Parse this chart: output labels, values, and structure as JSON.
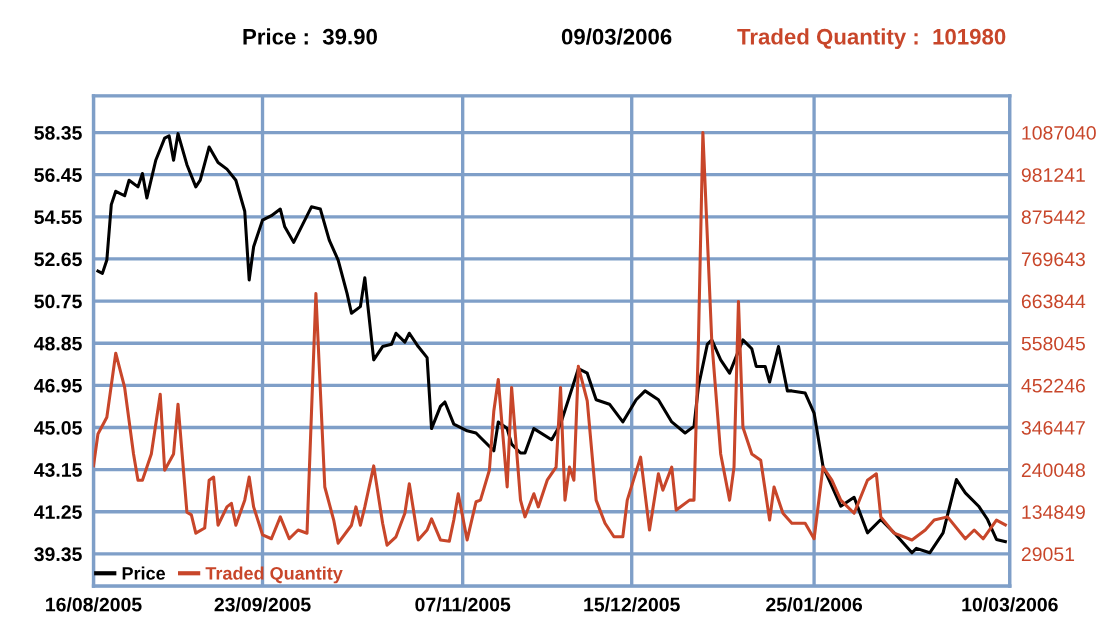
{
  "chart_data": {
    "type": "line",
    "annotations": [
      "Price :  39.90",
      "09/03/2006",
      "Traded Quantity :  101980"
    ],
    "xlim": [
      "2005-08-16",
      "2006-03-10"
    ],
    "xticks": [
      {
        "value": "2005-08-16",
        "label": "16/08/2005"
      },
      {
        "value": "2005-09-23",
        "label": "23/09/2005"
      },
      {
        "value": "2005-11-07",
        "label": "07/11/2005"
      },
      {
        "value": "2005-12-15",
        "label": "15/12/2005"
      },
      {
        "value": "2006-01-25",
        "label": "25/01/2006"
      },
      {
        "value": "2006-03-10",
        "label": "10/03/2006"
      }
    ],
    "ylim": [
      37.9,
      60.0
    ],
    "yticks": [
      39.35,
      41.25,
      43.15,
      45.05,
      46.95,
      48.85,
      50.75,
      52.65,
      54.55,
      56.45,
      58.35
    ],
    "y2lim": [
      -51700,
      1178900
    ],
    "y2ticks": [
      29051,
      134849,
      240048,
      346447,
      452246,
      558045,
      663844,
      769643,
      875442,
      981241,
      1087040
    ],
    "grid": true,
    "legend": "bottom left",
    "marker": "none",
    "line_style": "solid",
    "series": [
      {
        "name": "Price",
        "color": "#000000",
        "x": [
          "2005-08-17",
          "2005-08-18",
          "2005-08-19",
          "2005-08-20",
          "2005-08-21",
          "2005-08-23",
          "2005-08-24",
          "2005-08-26",
          "2005-08-27",
          "2005-08-28",
          "2005-08-30",
          "2005-09-01",
          "2005-09-02",
          "2005-09-03",
          "2005-09-04",
          "2005-09-06",
          "2005-09-08",
          "2005-09-09",
          "2005-09-11",
          "2005-09-13",
          "2005-09-15",
          "2005-09-17",
          "2005-09-19",
          "2005-09-20",
          "2005-09-21",
          "2005-09-23",
          "2005-09-25",
          "2005-09-27",
          "2005-09-28",
          "2005-09-30",
          "2005-10-02",
          "2005-10-04",
          "2005-10-06",
          "2005-10-08",
          "2005-10-10",
          "2005-10-12",
          "2005-10-13",
          "2005-10-15",
          "2005-10-16",
          "2005-10-18",
          "2005-10-20",
          "2005-10-22",
          "2005-10-23",
          "2005-10-25",
          "2005-10-26",
          "2005-10-28",
          "2005-10-30",
          "2005-10-31",
          "2005-11-02",
          "2005-11-03",
          "2005-11-05",
          "2005-11-07",
          "2005-11-08",
          "2005-11-10",
          "2005-11-11",
          "2005-11-14",
          "2005-11-15",
          "2005-11-17",
          "2005-11-18",
          "2005-11-20",
          "2005-11-21",
          "2005-11-23",
          "2005-11-27",
          "2005-11-29",
          "2005-12-03",
          "2005-12-05",
          "2005-12-07",
          "2005-12-10",
          "2005-12-13",
          "2005-12-16",
          "2005-12-18",
          "2005-12-21",
          "2005-12-24",
          "2005-12-27",
          "2005-12-29",
          "2005-12-30",
          "2006-01-01",
          "2006-01-02",
          "2006-01-04",
          "2006-01-06",
          "2006-01-09",
          "2006-01-11",
          "2006-01-12",
          "2006-01-14",
          "2006-01-15",
          "2006-01-17",
          "2006-01-19",
          "2006-01-20",
          "2006-01-23",
          "2006-01-25",
          "2006-01-27",
          "2006-01-29",
          "2006-01-31",
          "2006-02-03",
          "2006-02-06",
          "2006-02-09",
          "2006-02-12",
          "2006-02-16",
          "2006-02-17",
          "2006-02-20",
          "2006-02-23",
          "2006-02-26",
          "2006-02-28",
          "2006-03-03",
          "2006-03-05",
          "2006-03-07",
          "2006-03-09"
        ],
        "values": [
          52.1,
          52.0,
          52.6,
          55.1,
          55.7,
          55.5,
          56.2,
          55.9,
          56.5,
          55.4,
          57.1,
          58.1,
          58.2,
          57.1,
          58.3,
          56.9,
          55.9,
          56.2,
          57.7,
          57.0,
          56.7,
          56.2,
          54.8,
          51.7,
          53.2,
          54.4,
          54.6,
          54.9,
          54.1,
          53.4,
          54.2,
          55.0,
          54.9,
          53.5,
          52.6,
          51.1,
          50.2,
          50.5,
          51.8,
          48.1,
          48.7,
          48.8,
          49.3,
          48.9,
          49.3,
          48.7,
          48.2,
          45.0,
          46.0,
          46.2,
          45.2,
          45.0,
          44.9,
          44.8,
          44.6,
          44.0,
          45.3,
          45.0,
          44.3,
          43.9,
          43.9,
          45.0,
          44.5,
          45.2,
          47.7,
          47.5,
          46.3,
          46.1,
          45.3,
          46.3,
          46.7,
          46.3,
          45.3,
          44.8,
          45.1,
          46.9,
          48.8,
          49.0,
          48.1,
          47.5,
          49.0,
          48.6,
          47.8,
          47.8,
          47.1,
          48.7,
          46.7,
          46.7,
          46.6,
          45.7,
          43.3,
          42.4,
          41.5,
          41.9,
          40.3,
          40.9,
          40.3,
          39.4,
          39.6,
          39.4,
          40.3,
          42.7,
          42.1,
          41.5,
          40.9,
          40.0,
          39.9
        ]
      },
      {
        "name": "Traded Quantity",
        "color": "#c8462a",
        "axis": "y2",
        "x": [
          "2005-08-16",
          "2005-08-17",
          "2005-08-19",
          "2005-08-21",
          "2005-08-23",
          "2005-08-25",
          "2005-08-26",
          "2005-08-27",
          "2005-08-29",
          "2005-08-31",
          "2005-09-01",
          "2005-09-03",
          "2005-09-04",
          "2005-09-06",
          "2005-09-07",
          "2005-09-08",
          "2005-09-10",
          "2005-09-11",
          "2005-09-12",
          "2005-09-13",
          "2005-09-15",
          "2005-09-16",
          "2005-09-17",
          "2005-09-19",
          "2005-09-20",
          "2005-09-21",
          "2005-09-23",
          "2005-09-25",
          "2005-09-27",
          "2005-09-29",
          "2005-10-01",
          "2005-10-03",
          "2005-10-05",
          "2005-10-07",
          "2005-10-09",
          "2005-10-10",
          "2005-10-13",
          "2005-10-14",
          "2005-10-15",
          "2005-10-16",
          "2005-10-18",
          "2005-10-20",
          "2005-10-21",
          "2005-10-23",
          "2005-10-25",
          "2005-10-26",
          "2005-10-28",
          "2005-10-30",
          "2005-10-31",
          "2005-11-02",
          "2005-11-04",
          "2005-11-05",
          "2005-11-06",
          "2005-11-08",
          "2005-11-10",
          "2005-11-11",
          "2005-11-13",
          "2005-11-14",
          "2005-11-15",
          "2005-11-17",
          "2005-11-18",
          "2005-11-20",
          "2005-11-21",
          "2005-11-23",
          "2005-11-24",
          "2005-11-26",
          "2005-11-28",
          "2005-11-29",
          "2005-11-30",
          "2005-12-01",
          "2005-12-02",
          "2005-12-03",
          "2005-12-05",
          "2005-12-07",
          "2005-12-09",
          "2005-12-11",
          "2005-12-13",
          "2005-12-14",
          "2005-12-17",
          "2005-12-19",
          "2005-12-21",
          "2005-12-22",
          "2005-12-24",
          "2005-12-25",
          "2005-12-28",
          "2005-12-29",
          "2005-12-30",
          "2005-12-31",
          "2006-01-02",
          "2006-01-04",
          "2006-01-06",
          "2006-01-07",
          "2006-01-08",
          "2006-01-09",
          "2006-01-11",
          "2006-01-13",
          "2006-01-15",
          "2006-01-16",
          "2006-01-18",
          "2006-01-20",
          "2006-01-23",
          "2006-01-25",
          "2006-01-27",
          "2006-01-29",
          "2006-01-31",
          "2006-02-03",
          "2006-02-06",
          "2006-02-08",
          "2006-02-09",
          "2006-02-12",
          "2006-02-16",
          "2006-02-19",
          "2006-02-21",
          "2006-02-24",
          "2006-02-28",
          "2006-03-02",
          "2006-03-04",
          "2006-03-07",
          "2006-03-09"
        ],
        "values": [
          250000,
          330000,
          372000,
          533000,
          447000,
          280000,
          214000,
          214000,
          280000,
          430000,
          239000,
          280000,
          405000,
          134000,
          127000,
          81000,
          94000,
          214000,
          222000,
          101000,
          147000,
          156000,
          101000,
          164000,
          222000,
          147000,
          77000,
          67000,
          122000,
          67000,
          89000,
          81000,
          683000,
          197000,
          114000,
          56000,
          101000,
          147000,
          101000,
          147000,
          250000,
          106000,
          51000,
          72000,
          131000,
          205000,
          64000,
          89000,
          117000,
          64000,
          61000,
          114000,
          180000,
          64000,
          160000,
          164000,
          239000,
          388000,
          467000,
          197000,
          447000,
          164000,
          122000,
          180000,
          147000,
          214000,
          247000,
          447000,
          164000,
          247000,
          214000,
          500000,
          413000,
          164000,
          106000,
          72000,
          72000,
          164000,
          272000,
          89000,
          230000,
          189000,
          247000,
          139000,
          164000,
          164000,
          563000,
          1087000,
          563000,
          280000,
          164000,
          247000,
          663000,
          347000,
          280000,
          264000,
          114000,
          197000,
          131000,
          106000,
          106000,
          67000,
          247000,
          214000,
          164000,
          131000,
          214000,
          230000,
          122000,
          81000,
          64000,
          89000,
          114000,
          122000,
          67000,
          89000,
          67000,
          114000,
          102000
        ]
      }
    ]
  }
}
